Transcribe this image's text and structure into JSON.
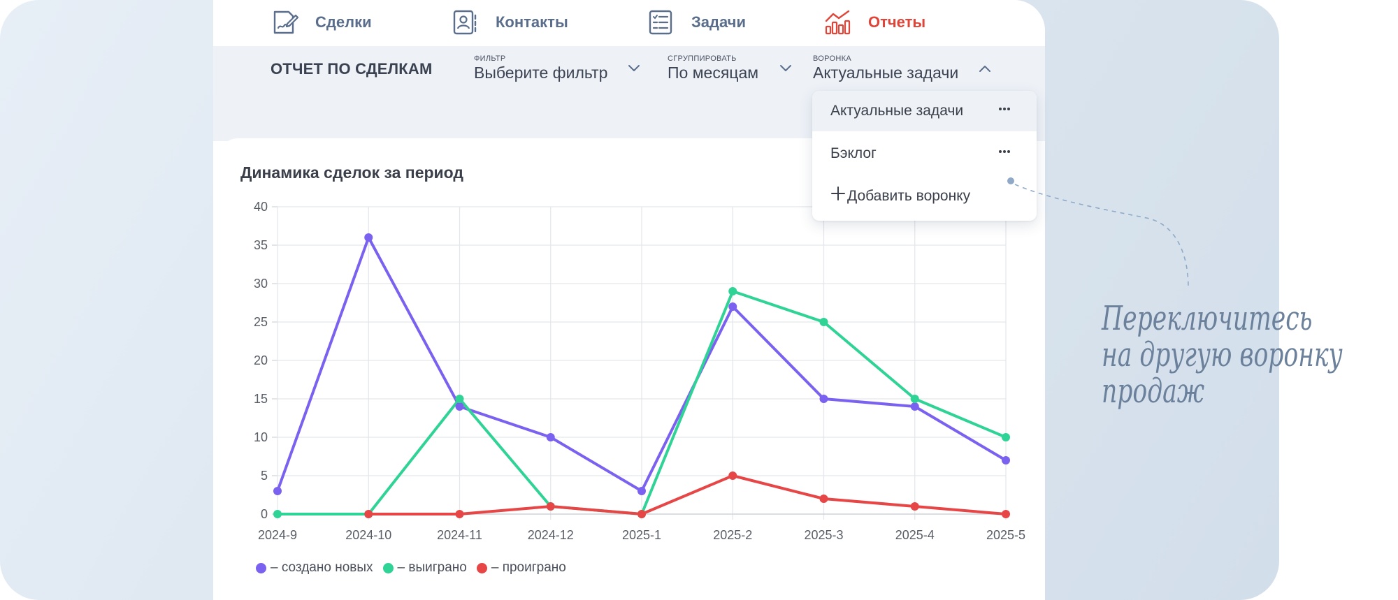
{
  "nav": {
    "items": [
      {
        "label": "Сделки",
        "icon": "deal-signing-icon",
        "active": false
      },
      {
        "label": "Контакты",
        "icon": "contact-card-icon",
        "active": false
      },
      {
        "label": "Задачи",
        "icon": "task-list-icon",
        "active": false
      },
      {
        "label": "Отчеты",
        "icon": "bar-chart-icon",
        "active": true
      }
    ]
  },
  "toolbar": {
    "title": "ОТЧЕТ ПО СДЕЛКАМ",
    "filter": {
      "caption": "ФИЛЬТР",
      "value": "Выберите фильтр"
    },
    "group": {
      "caption": "СГРУППИРОВАТЬ",
      "value": "По месяцам"
    },
    "funnel": {
      "caption": "ВОРОНКА",
      "value": "Актуальные задачи"
    }
  },
  "funnel_dropdown": {
    "items": [
      {
        "label": "Актуальные задачи",
        "selected": true
      },
      {
        "label": "Бэклог",
        "selected": false
      }
    ],
    "add_label": "Добавить воронку"
  },
  "card": {
    "title": "Динамика сделок за период"
  },
  "chart_data": {
    "type": "line",
    "title": "Динамика сделок за период",
    "x": [
      "2024-9",
      "2024-10",
      "2024-11",
      "2024-12",
      "2025-1",
      "2025-2",
      "2025-3",
      "2025-4",
      "2025-5"
    ],
    "ylim": [
      0,
      40
    ],
    "yticks": [
      0,
      5,
      10,
      15,
      20,
      25,
      30,
      35,
      40
    ],
    "grid": true,
    "legend_position": "bottom-left",
    "series": [
      {
        "name": "– создано новых",
        "color": "#7b61f0",
        "values": [
          3,
          36,
          14,
          10,
          3,
          27,
          15,
          14,
          7
        ]
      },
      {
        "name": "– выиграно",
        "color": "#2fd396",
        "values": [
          0,
          0,
          15,
          1,
          0,
          29,
          25,
          15,
          10
        ]
      },
      {
        "name": "– проиграно",
        "color": "#e64646",
        "values": [
          null,
          0,
          0,
          1,
          0,
          5,
          2,
          1,
          0
        ]
      }
    ]
  },
  "annotation": {
    "lines": [
      "Переключитесь",
      "на другую воронку",
      "продаж"
    ]
  },
  "colors": {
    "accent": "#e0453a",
    "nav_text": "#5a6e8c",
    "note": "#6b809a"
  }
}
